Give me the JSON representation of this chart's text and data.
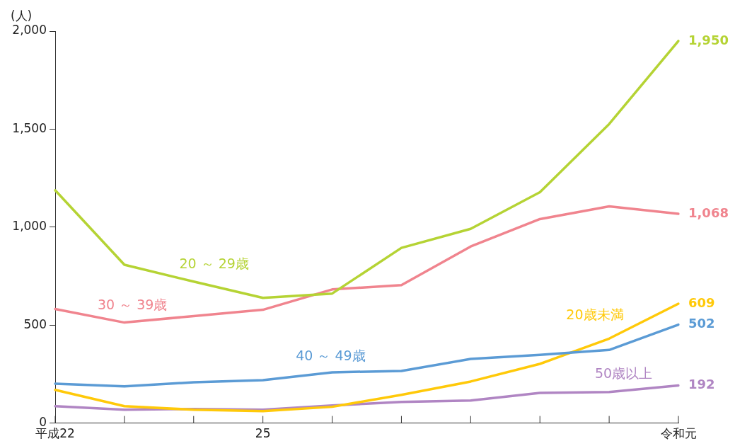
{
  "chart_data": {
    "type": "line",
    "ylabel": "(人)",
    "categories": [
      "平成22",
      null,
      null,
      "25",
      null,
      null,
      null,
      null,
      null,
      "令和元"
    ],
    "ylim": [
      0,
      2000
    ],
    "yticks": [
      {
        "value": 0,
        "label": "0"
      },
      {
        "value": 500,
        "label": "500"
      },
      {
        "value": 1000,
        "label": "1,000"
      },
      {
        "value": 1500,
        "label": "1,500"
      },
      {
        "value": 2000,
        "label": "2,000"
      }
    ],
    "grid": false,
    "legend": false,
    "marker": "none",
    "line_style": "solid",
    "series": [
      {
        "name": "20 ～ 29歳",
        "color": "#b5d334",
        "values": [
          1188,
          808,
          722,
          639,
          661,
          894,
          991,
          1178,
          1526,
          1950
        ],
        "value_labels": [
          null,
          null,
          null,
          null,
          null,
          null,
          null,
          null,
          null,
          "1,950"
        ]
      },
      {
        "name": "30 ～ 39歳",
        "color": "#f0848e",
        "values": [
          582,
          513,
          546,
          578,
          682,
          704,
          901,
          1041,
          1106,
          1068
        ],
        "value_labels": [
          null,
          null,
          null,
          null,
          null,
          null,
          null,
          null,
          null,
          "1,068"
        ]
      },
      {
        "name": "40 ～ 49歳",
        "color": "#5b9bd5",
        "values": [
          201,
          187,
          208,
          219,
          259,
          266,
          327,
          348,
          373,
          502
        ],
        "value_labels": [
          null,
          null,
          null,
          null,
          null,
          null,
          null,
          null,
          null,
          "502"
        ]
      },
      {
        "name": "20歳未満",
        "color": "#ffc909",
        "values": [
          169,
          86,
          68,
          61,
          83,
          144,
          212,
          302,
          431,
          609
        ],
        "value_labels": [
          null,
          null,
          null,
          null,
          null,
          null,
          null,
          null,
          null,
          "609"
        ]
      },
      {
        "name": "50歳以上",
        "color": "#b085c3",
        "values": [
          86,
          68,
          72,
          68,
          90,
          108,
          115,
          154,
          158,
          192
        ],
        "value_labels": [
          null,
          null,
          null,
          null,
          null,
          null,
          null,
          null,
          null,
          "192"
        ]
      }
    ]
  }
}
